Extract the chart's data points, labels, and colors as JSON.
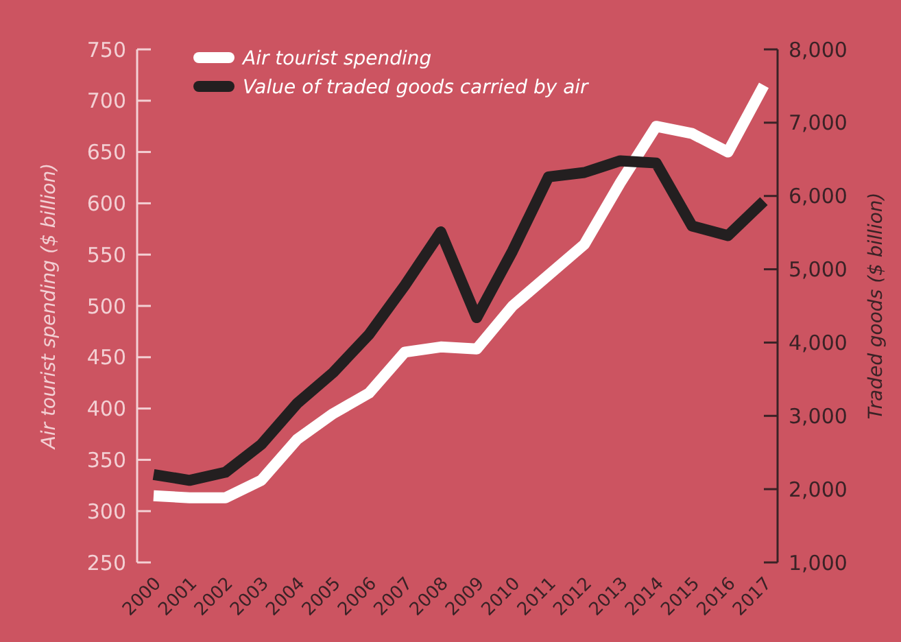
{
  "chart_data": {
    "type": "line",
    "categories": [
      "2000",
      "2001",
      "2002",
      "2003",
      "2004",
      "2005",
      "2006",
      "2007",
      "2008",
      "2009",
      "2010",
      "2011",
      "2012",
      "2013",
      "2014",
      "2015",
      "2016",
      "2017"
    ],
    "ylabel": "Air tourist spending ($ billion)",
    "y2label": "Traded goods ($ billion)",
    "ylim": [
      250,
      750
    ],
    "yticks": [
      250,
      300,
      350,
      400,
      450,
      500,
      550,
      600,
      650,
      700,
      750
    ],
    "y2lim": [
      1000,
      8000
    ],
    "y2ticks": [
      {
        "value": 1000,
        "label": "1,000"
      },
      {
        "value": 2000,
        "label": "2,000"
      },
      {
        "value": 3000,
        "label": "3,000"
      },
      {
        "value": 4000,
        "label": "4,000"
      },
      {
        "value": 5000,
        "label": "5,000"
      },
      {
        "value": 6000,
        "label": "6,000"
      },
      {
        "value": 7000,
        "label": "7,000"
      },
      {
        "value": 8000,
        "label": "8,000"
      }
    ],
    "series": [
      {
        "name": "Air tourist spending",
        "color": "#ffffff",
        "values": [
          315,
          313,
          313,
          330,
          370,
          395,
          415,
          455,
          460,
          458,
          500,
          530,
          560,
          620,
          675,
          668,
          650,
          715
        ]
      },
      {
        "name": "Value of traded goods carried by air",
        "color": "#231f20",
        "axis": "y2",
        "values": [
          2200,
          2120,
          2230,
          2610,
          3170,
          3590,
          4110,
          4780,
          5510,
          4340,
          5250,
          6260,
          6320,
          6480,
          6450,
          5590,
          5460,
          5930
        ]
      }
    ],
    "legend": "top left",
    "grid": false,
    "line_style": "solid",
    "marker": "none"
  }
}
